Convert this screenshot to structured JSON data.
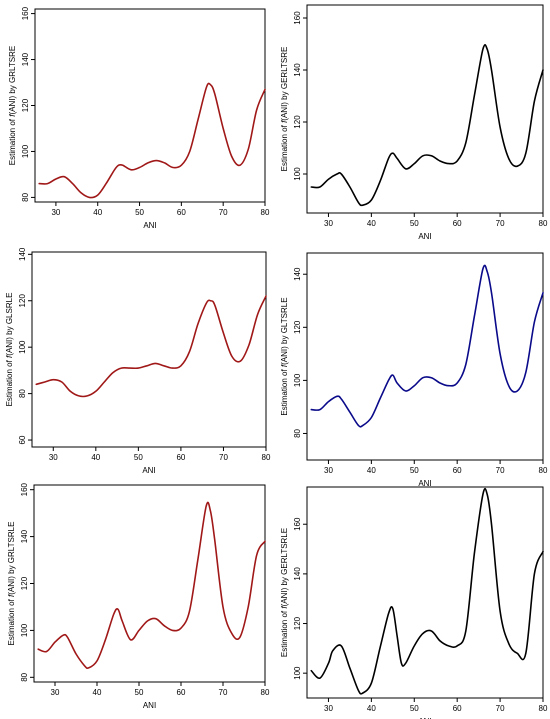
{
  "chart_data": [
    {
      "type": "line",
      "title": "",
      "xlabel": "ANI",
      "ylabel_prefix": "Estimation of ",
      "ylabel_f": "f",
      "ylabel_suffix": "(ANI) by GRLTSRE",
      "xlim": [
        25,
        80
      ],
      "ylim": [
        78,
        162
      ],
      "xticks": [
        30,
        40,
        50,
        60,
        70,
        80
      ],
      "yticks": [
        80,
        100,
        120,
        140,
        160
      ],
      "color": "#a01818",
      "series": [
        {
          "x": [
            26,
            28,
            30,
            32,
            34,
            36,
            38,
            40,
            42,
            44,
            45,
            46,
            48,
            50,
            52,
            54,
            56,
            58,
            60,
            62,
            64,
            66,
            67,
            68,
            70,
            72,
            74,
            76,
            78,
            80
          ],
          "y": [
            86,
            86,
            88,
            89,
            86,
            82,
            80,
            81,
            86,
            92,
            94,
            94,
            92,
            93,
            95,
            96,
            95,
            93,
            94,
            100,
            114,
            128,
            129,
            125,
            110,
            98,
            94,
            101,
            118,
            127
          ]
        }
      ]
    },
    {
      "type": "line",
      "title": "",
      "xlabel": "ANI",
      "ylabel_prefix": "Estimation of ",
      "ylabel_f": "f",
      "ylabel_suffix": "(ANI) by GERLTSRE",
      "xlim": [
        25,
        80
      ],
      "ylim": [
        85,
        165
      ],
      "xticks": [
        30,
        40,
        50,
        60,
        70,
        80
      ],
      "yticks": [
        100,
        120,
        140,
        160
      ],
      "color": "#000000",
      "series": [
        {
          "x": [
            26,
            28,
            30,
            32,
            33,
            35,
            37,
            38,
            40,
            42,
            44,
            45,
            46,
            48,
            50,
            52,
            54,
            56,
            58,
            60,
            62,
            64,
            66,
            67,
            68,
            70,
            72,
            74,
            76,
            78,
            80
          ],
          "y": [
            95,
            95,
            98,
            100,
            100,
            95,
            89,
            88,
            90,
            97,
            106,
            108,
            106,
            102,
            104,
            107,
            107,
            105,
            104,
            105,
            112,
            130,
            148,
            148,
            140,
            118,
            106,
            103,
            108,
            128,
            140
          ]
        }
      ]
    },
    {
      "type": "line",
      "title": "",
      "xlabel": "ANI",
      "ylabel_prefix": "Estimation of ",
      "ylabel_f": "f",
      "ylabel_suffix": "(ANI) by GLSRLE",
      "xlim": [
        25,
        80
      ],
      "ylim": [
        57,
        141
      ],
      "xticks": [
        30,
        40,
        50,
        60,
        70,
        80
      ],
      "yticks": [
        60,
        80,
        100,
        120,
        140
      ],
      "color": "#a01818",
      "series": [
        {
          "x": [
            26,
            28,
            30,
            32,
            34,
            36,
            38,
            40,
            42,
            44,
            46,
            48,
            50,
            52,
            54,
            56,
            58,
            60,
            62,
            64,
            66,
            67,
            68,
            70,
            72,
            74,
            76,
            78,
            80
          ],
          "y": [
            84,
            85,
            86,
            85,
            81,
            79,
            79,
            81,
            85,
            89,
            91,
            91,
            91,
            92,
            93,
            92,
            91,
            92,
            98,
            110,
            119,
            120,
            118,
            106,
            96,
            94,
            101,
            114,
            122
          ]
        }
      ]
    },
    {
      "type": "line",
      "title": "",
      "xlabel": "ANI",
      "ylabel_prefix": "Estimation of ",
      "ylabel_f": "f",
      "ylabel_suffix": "(ANI) by GLTSRLE",
      "xlim": [
        25,
        80
      ],
      "ylim": [
        70,
        148
      ],
      "xticks": [
        30,
        40,
        50,
        60,
        70,
        80
      ],
      "yticks": [
        80,
        100,
        120,
        140
      ],
      "color": "#0a0a8a",
      "series": [
        {
          "x": [
            26,
            28,
            30,
            32,
            33,
            35,
            37,
            38,
            40,
            42,
            44,
            45,
            46,
            48,
            50,
            52,
            54,
            56,
            58,
            60,
            62,
            64,
            66,
            67,
            68,
            70,
            72,
            74,
            76,
            78,
            80
          ],
          "y": [
            89,
            89,
            92,
            94,
            93,
            88,
            83,
            83,
            86,
            93,
            100,
            102,
            99,
            96,
            98,
            101,
            101,
            99,
            98,
            99,
            106,
            124,
            142,
            141,
            133,
            110,
            98,
            96,
            103,
            122,
            133
          ]
        }
      ]
    },
    {
      "type": "line",
      "title": "",
      "xlabel": "ANI",
      "ylabel_prefix": "Estimation of ",
      "ylabel_f": "f",
      "ylabel_suffix": "(ANI) by GRLTSRLE",
      "xlim": [
        25,
        80
      ],
      "ylim": [
        78,
        162
      ],
      "xticks": [
        30,
        40,
        50,
        60,
        70,
        80
      ],
      "yticks": [
        80,
        100,
        120,
        140,
        160
      ],
      "color": "#a01818",
      "series": [
        {
          "x": [
            26,
            28,
            30,
            32,
            33,
            35,
            37,
            38,
            40,
            42,
            44,
            45,
            46,
            48,
            50,
            52,
            54,
            56,
            58,
            60,
            62,
            64,
            66,
            67,
            68,
            70,
            72,
            74,
            76,
            78,
            80
          ],
          "y": [
            92,
            91,
            95,
            98,
            97,
            90,
            85,
            84,
            87,
            96,
            107,
            109,
            104,
            96,
            100,
            104,
            105,
            102,
            100,
            101,
            108,
            130,
            153,
            151,
            139,
            110,
            99,
            97,
            110,
            132,
            138
          ]
        }
      ]
    },
    {
      "type": "line",
      "title": "",
      "xlabel": "ANI",
      "ylabel_prefix": "Estimation of ",
      "ylabel_f": "f",
      "ylabel_suffix": "(ANI) by GERLTSRLE",
      "xlim": [
        25,
        80
      ],
      "ylim": [
        90,
        175
      ],
      "xticks": [
        30,
        40,
        50,
        60,
        70,
        80
      ],
      "yticks": [
        100,
        120,
        140,
        160
      ],
      "color": "#000000",
      "series": [
        {
          "x": [
            26,
            28,
            30,
            31,
            33,
            35,
            37,
            38,
            40,
            42,
            44,
            45,
            46,
            47,
            48,
            50,
            52,
            54,
            56,
            58,
            60,
            62,
            64,
            66,
            67,
            68,
            70,
            72,
            74,
            76,
            78,
            80
          ],
          "y": [
            101,
            98,
            104,
            109,
            111,
            102,
            93,
            92,
            96,
            110,
            124,
            126,
            115,
            104,
            104,
            111,
            116,
            117,
            113,
            111,
            111,
            117,
            148,
            172,
            172,
            160,
            125,
            112,
            108,
            108,
            140,
            149
          ]
        }
      ]
    }
  ]
}
